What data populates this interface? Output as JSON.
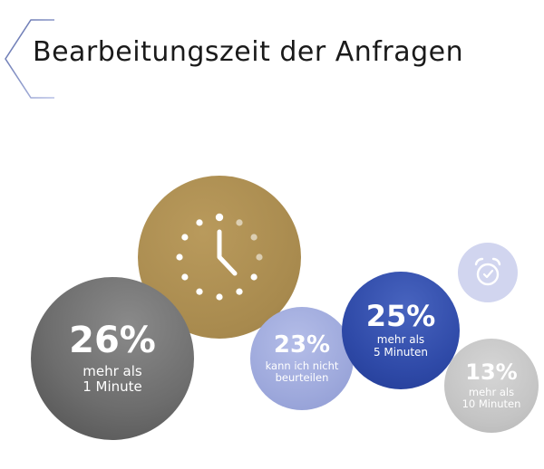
{
  "title": "Bearbeitungszeit der Anfragen",
  "colors": {
    "gold": "#a88a4e",
    "dark_grey": "#6d6d6d",
    "light_lavender": "#9ea9dc",
    "blue": "#2f4aa8",
    "silver": "#c4c4c4",
    "alarm_bg": "#d1d5ef",
    "bracket": "#5a6aa8"
  },
  "icons": {
    "clock": "clock-icon",
    "alarm": "alarm-clock-icon"
  },
  "chart_data": {
    "type": "bubble",
    "title": "Bearbeitungszeit der Anfragen",
    "series": [
      {
        "label": "mehr als 1 Minute",
        "value": 26,
        "display": "26%",
        "caption": [
          "mehr als",
          "1 Minute"
        ],
        "color": "#6d6d6d"
      },
      {
        "label": "kann ich nicht beurteilen",
        "value": 23,
        "display": "23%",
        "caption": [
          "kann ich nicht",
          "beurteilen"
        ],
        "color": "#9ea9dc"
      },
      {
        "label": "mehr als 5 Minuten",
        "value": 25,
        "display": "25%",
        "caption": [
          "mehr als",
          "5 Minuten"
        ],
        "color": "#2f4aa8"
      },
      {
        "label": "mehr als 10 Minuten",
        "value": 13,
        "display": "13%",
        "caption": [
          "mehr als",
          "10 Minuten"
        ],
        "color": "#c4c4c4"
      }
    ]
  }
}
